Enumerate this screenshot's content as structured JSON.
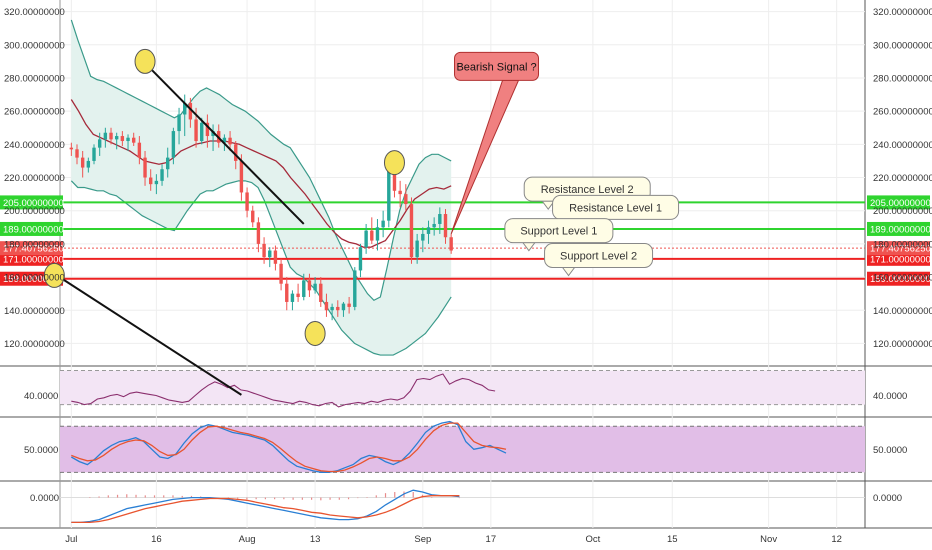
{
  "chart_data": [
    {
      "type": "candlestick",
      "panel": "price",
      "y_axis_labels": [
        "320.00000000",
        "300.00000000",
        "280.00000000",
        "260.00000000",
        "240.00000000",
        "220.00000000",
        "200.00000000",
        "180.00000000",
        "160.00000000",
        "140.00000000",
        "120.00000000"
      ],
      "y_axis_values": [
        320,
        300,
        280,
        260,
        240,
        220,
        200,
        180,
        160,
        140,
        120
      ],
      "ylim": [
        107,
        327
      ],
      "x_axis_labels": [
        "Jul",
        "16",
        "Aug",
        "13",
        "Sep",
        "17",
        "Oct",
        "15",
        "Nov",
        "12"
      ],
      "x_axis_days": [
        0,
        15,
        31,
        43,
        62,
        74,
        92,
        106,
        123,
        135
      ],
      "xlim": [
        -2,
        140
      ],
      "candles_start_day": 0,
      "candles": [
        [
          238,
          241,
          233,
          237
        ],
        [
          237,
          240,
          228,
          232
        ],
        [
          232,
          236,
          220,
          226
        ],
        [
          226,
          232,
          223,
          230
        ],
        [
          230,
          240,
          228,
          238
        ],
        [
          238,
          247,
          233,
          243
        ],
        [
          243,
          250,
          238,
          247
        ],
        [
          247,
          250,
          240,
          243
        ],
        [
          243,
          247,
          237,
          245
        ],
        [
          245,
          248,
          239,
          242
        ],
        [
          242,
          246,
          236,
          244
        ],
        [
          244,
          247,
          239,
          241
        ],
        [
          241,
          245,
          228,
          232
        ],
        [
          232,
          236,
          215,
          220
        ],
        [
          220,
          225,
          212,
          216
        ],
        [
          216,
          222,
          210,
          218
        ],
        [
          218,
          228,
          215,
          225
        ],
        [
          225,
          238,
          220,
          232
        ],
        [
          232,
          250,
          228,
          248
        ],
        [
          248,
          262,
          240,
          258
        ],
        [
          258,
          270,
          245,
          265
        ],
        [
          265,
          268,
          250,
          255
        ],
        [
          255,
          262,
          238,
          242
        ],
        [
          242,
          256,
          240,
          253
        ],
        [
          253,
          258,
          238,
          245
        ],
        [
          245,
          252,
          236,
          248
        ],
        [
          248,
          252,
          238,
          241
        ],
        [
          241,
          246,
          236,
          244
        ],
        [
          244,
          248,
          236,
          240
        ],
        [
          240,
          242,
          225,
          230
        ],
        [
          230,
          234,
          206,
          211
        ],
        [
          211,
          214,
          196,
          200
        ],
        [
          200,
          203,
          190,
          193
        ],
        [
          193,
          196,
          175,
          180
        ],
        [
          180,
          184,
          168,
          172
        ],
        [
          172,
          178,
          166,
          176
        ],
        [
          176,
          179,
          164,
          168
        ],
        [
          168,
          171,
          152,
          156
        ],
        [
          156,
          160,
          140,
          145
        ],
        [
          145,
          152,
          140,
          150
        ],
        [
          150,
          156,
          145,
          148
        ],
        [
          148,
          162,
          146,
          158
        ],
        [
          158,
          162,
          148,
          152
        ],
        [
          152,
          160,
          150,
          156
        ],
        [
          156,
          160,
          142,
          145
        ],
        [
          145,
          150,
          136,
          140
        ],
        [
          140,
          144,
          134,
          142
        ],
        [
          142,
          146,
          136,
          140
        ],
        [
          140,
          145,
          136,
          144
        ],
        [
          144,
          148,
          138,
          142
        ],
        [
          142,
          166,
          140,
          164
        ],
        [
          164,
          180,
          160,
          178
        ],
        [
          178,
          192,
          174,
          188
        ],
        [
          188,
          196,
          180,
          182
        ],
        [
          182,
          195,
          176,
          190
        ],
        [
          190,
          200,
          184,
          194
        ],
        [
          194,
          228,
          190,
          224
        ],
        [
          224,
          232,
          208,
          212
        ],
        [
          212,
          218,
          202,
          210
        ],
        [
          210,
          216,
          200,
          204
        ],
        [
          204,
          208,
          168,
          172
        ],
        [
          172,
          186,
          168,
          182
        ],
        [
          182,
          190,
          175,
          186
        ],
        [
          186,
          194,
          180,
          190
        ],
        [
          190,
          196,
          185,
          192
        ],
        [
          192,
          202,
          186,
          198
        ],
        [
          198,
          201,
          180,
          184
        ],
        [
          184,
          186,
          174,
          176
        ]
      ],
      "bollinger_upper": [
        315,
        303,
        292,
        281,
        279,
        278,
        276,
        274,
        272,
        270,
        268,
        266,
        264,
        262,
        260,
        258,
        256,
        258,
        263,
        268,
        272,
        274,
        272,
        270,
        267,
        264,
        262,
        260,
        257,
        254,
        250,
        246,
        243,
        240,
        238,
        232,
        226,
        220,
        212,
        204,
        196,
        186,
        178,
        170,
        162,
        156,
        150,
        146,
        148,
        165,
        183,
        200,
        212,
        220,
        228,
        232,
        234,
        234,
        232,
        230
      ],
      "bollinger_lower": [
        218,
        214,
        214,
        213,
        212,
        212,
        210,
        209,
        206,
        203,
        200,
        197,
        195,
        193,
        191,
        189,
        188,
        194,
        200,
        205,
        210,
        212,
        212,
        214,
        216,
        217,
        218,
        218,
        217,
        214,
        206,
        196,
        186,
        176,
        166,
        162,
        160,
        156,
        152,
        146,
        140,
        134,
        128,
        124,
        120,
        118,
        116,
        114,
        113,
        113,
        113,
        115,
        117,
        120,
        123,
        126,
        131,
        136,
        142,
        148
      ],
      "sma_middle": [
        267,
        260,
        252,
        246,
        244,
        242,
        240,
        238,
        236,
        233,
        230,
        229,
        228,
        229,
        232,
        236,
        238,
        240,
        241,
        242,
        242,
        242,
        241,
        240,
        238,
        236,
        234,
        232,
        230,
        226,
        220,
        215,
        210,
        204,
        198,
        192,
        187,
        183,
        181,
        180,
        178,
        178,
        180,
        182,
        188,
        194,
        201,
        207,
        210,
        213,
        214,
        213,
        215
      ],
      "channel_upper_line": [
        [
          13,
          289
        ],
        [
          41,
          192
        ]
      ],
      "channel_lower_line": [
        [
          -3,
          162
        ],
        [
          30,
          89
        ]
      ],
      "horizontal_levels": [
        {
          "value": 205,
          "color": "#2fd42f",
          "label": "205.00000000"
        },
        {
          "value": 189,
          "color": "#2fd42f",
          "label": "189.00000000"
        },
        {
          "value": 171,
          "color": "#ee2222",
          "label": "171.00000000"
        },
        {
          "value": 159,
          "color": "#ee2222",
          "label": "159.00000000"
        }
      ],
      "last_price": {
        "value": 177.4075625,
        "label": "177.40756250",
        "color": "#ef5350"
      },
      "circle_markers": [
        [
          13,
          290
        ],
        [
          -3,
          161
        ],
        [
          57,
          229
        ],
        [
          43,
          126
        ]
      ],
      "callouts": [
        {
          "text": "Resistance Level 2",
          "day": 91,
          "value": 213
        },
        {
          "text": "Resistance Level 1",
          "day": 96,
          "value": 202
        },
        {
          "text": "Support Level 1",
          "day": 86,
          "value": 188
        },
        {
          "text": "Support Level 2",
          "day": 93,
          "value": 173
        }
      ],
      "signal": {
        "text": "Bearish Signal ?",
        "day": 75,
        "value": 287
      }
    },
    {
      "type": "line",
      "panel": "rsi",
      "y_axis_labels": [
        "40.0000"
      ],
      "y_axis_values": [
        40
      ],
      "ylim": [
        22,
        66
      ],
      "band": [
        32,
        62
      ],
      "values": [
        35,
        34,
        32,
        33,
        37,
        38,
        40,
        41,
        39,
        42,
        43,
        42,
        41,
        40,
        38,
        36,
        35,
        34,
        35,
        40,
        45,
        49,
        52,
        50,
        47,
        49,
        45,
        44,
        42,
        40,
        38,
        36,
        35,
        34,
        33,
        35,
        34,
        32,
        31,
        33,
        34,
        30,
        32,
        33,
        34,
        33,
        35,
        34,
        36,
        37,
        36,
        38,
        44,
        54,
        55,
        54,
        57,
        59,
        50,
        53,
        55,
        54,
        51,
        49,
        45,
        44
      ],
      "values_start_day": 0,
      "values_step": 1.15
    },
    {
      "type": "line",
      "panel": "stochastic",
      "y_axis_labels": [
        "50.0000"
      ],
      "y_axis_values": [
        50
      ],
      "ylim": [
        10,
        92
      ],
      "band": [
        20,
        80
      ],
      "k_values": [
        40,
        34,
        30,
        38,
        48,
        55,
        60,
        62,
        65,
        60,
        50,
        40,
        38,
        44,
        58,
        70,
        78,
        82,
        80,
        76,
        72,
        70,
        68,
        65,
        62,
        55,
        45,
        35,
        28,
        25,
        22,
        20,
        20,
        22,
        26,
        30,
        38,
        42,
        40,
        34,
        30,
        35,
        45,
        58,
        72,
        80,
        84,
        86,
        82,
        60,
        50,
        52,
        55,
        50,
        45
      ],
      "d_values": [
        42,
        38,
        35,
        36,
        42,
        50,
        56,
        60,
        62,
        61,
        55,
        47,
        42,
        43,
        50,
        62,
        72,
        79,
        80,
        78,
        75,
        72,
        70,
        67,
        64,
        59,
        51,
        42,
        34,
        28,
        25,
        22,
        21,
        21,
        23,
        27,
        32,
        38,
        40,
        38,
        35,
        35,
        40,
        50,
        63,
        74,
        81,
        84,
        84,
        72,
        60,
        55,
        53,
        52,
        50
      ],
      "values_start_day": 0,
      "values_step": 1.42
    },
    {
      "type": "line",
      "panel": "macd",
      "y_axis_labels": [
        "0.0000"
      ],
      "y_axis_values": [
        0
      ],
      "ylim": [
        -32,
        18
      ],
      "macd_values": [
        -27,
        -27,
        -26,
        -24,
        -20,
        -16,
        -12,
        -10,
        -8,
        -6,
        -4,
        -2,
        -1,
        0,
        0,
        0,
        -1,
        -2,
        -4,
        -6,
        -8,
        -10,
        -12,
        -14,
        -16,
        -18,
        -20,
        -22,
        -23,
        -24,
        -24,
        -23,
        -20,
        -15,
        -8,
        -2,
        4,
        8,
        6,
        3,
        2,
        2,
        1
      ],
      "signal_values": [
        -27,
        -27,
        -27,
        -26,
        -24,
        -21,
        -18,
        -15,
        -12,
        -10,
        -8,
        -6,
        -4,
        -3,
        -2,
        -1,
        -1,
        -1,
        -2,
        -3,
        -5,
        -7,
        -9,
        -11,
        -12,
        -14,
        -16,
        -17,
        -19,
        -20,
        -21,
        -22,
        -21,
        -19,
        -16,
        -12,
        -7,
        -2,
        1,
        2,
        2,
        2,
        2
      ],
      "values_start_day": 0,
      "values_step": 1.63
    }
  ]
}
